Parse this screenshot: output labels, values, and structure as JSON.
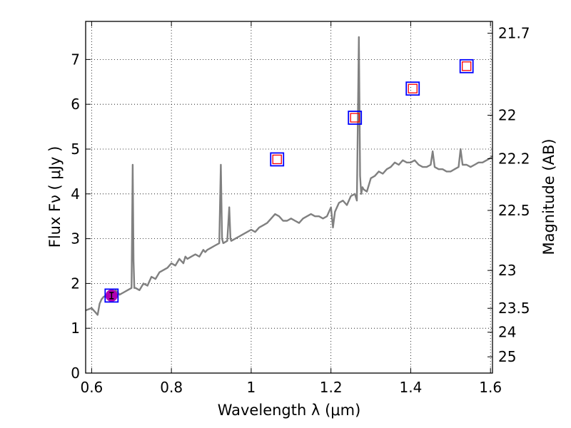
{
  "chart_data": {
    "type": "line",
    "xlabel": "Wavelength  λ (μm)",
    "ylabel": "Flux  Fν  ( μJy )",
    "ylabel_right": "Magnitude (AB)",
    "xlim": [
      0.585,
      1.605
    ],
    "ylim": [
      0,
      7.85
    ],
    "grid": true,
    "x_ticks": [
      0.6,
      0.8,
      1.0,
      1.2,
      1.4,
      1.6
    ],
    "x_tick_labels": [
      "0.6",
      "0.8",
      "1",
      "1.2",
      "1.4",
      "1.6"
    ],
    "y_ticks": [
      0,
      1,
      2,
      3,
      4,
      5,
      6,
      7
    ],
    "y_tick_labels": [
      "0",
      "1",
      "2",
      "3",
      "4",
      "5",
      "6",
      "7"
    ],
    "right_ticks_mag": [
      21.7,
      22,
      22.2,
      22.5,
      23,
      23.5,
      24,
      25
    ],
    "right_tick_labels": [
      "21.7",
      "22",
      "22.2",
      "22.5",
      "23",
      "23.5",
      "24",
      "25"
    ],
    "series": [
      {
        "color": "#808080",
        "x": [
          0.585,
          0.6,
          0.61,
          0.615,
          0.62,
          0.625,
          0.63,
          0.64,
          0.65,
          0.66,
          0.665,
          0.67,
          0.68,
          0.69,
          0.7,
          0.703,
          0.705,
          0.707,
          0.71,
          0.72,
          0.73,
          0.74,
          0.75,
          0.76,
          0.77,
          0.78,
          0.79,
          0.8,
          0.81,
          0.82,
          0.83,
          0.835,
          0.84,
          0.85,
          0.86,
          0.87,
          0.88,
          0.885,
          0.89,
          0.9,
          0.91,
          0.92,
          0.924,
          0.927,
          0.93,
          0.94,
          0.945,
          0.948,
          0.95,
          0.96,
          0.97,
          0.98,
          0.99,
          1.0,
          1.01,
          1.02,
          1.03,
          1.04,
          1.05,
          1.06,
          1.07,
          1.08,
          1.09,
          1.1,
          1.11,
          1.12,
          1.13,
          1.14,
          1.15,
          1.16,
          1.17,
          1.18,
          1.19,
          1.2,
          1.205,
          1.21,
          1.22,
          1.23,
          1.24,
          1.25,
          1.26,
          1.265,
          1.27,
          1.273,
          1.276,
          1.279,
          1.282,
          1.29,
          1.3,
          1.31,
          1.32,
          1.33,
          1.34,
          1.35,
          1.36,
          1.37,
          1.38,
          1.39,
          1.4,
          1.41,
          1.42,
          1.43,
          1.44,
          1.45,
          1.455,
          1.46,
          1.47,
          1.48,
          1.49,
          1.5,
          1.51,
          1.52,
          1.525,
          1.53,
          1.54,
          1.55,
          1.56,
          1.57,
          1.58,
          1.59,
          1.6,
          1.605
        ],
        "y": [
          1.4,
          1.45,
          1.35,
          1.3,
          1.55,
          1.65,
          1.7,
          1.75,
          1.7,
          1.85,
          1.8,
          1.75,
          1.8,
          1.85,
          1.9,
          4.65,
          2.5,
          1.9,
          1.9,
          1.85,
          2.0,
          1.95,
          2.15,
          2.1,
          2.25,
          2.3,
          2.35,
          2.45,
          2.4,
          2.55,
          2.45,
          2.6,
          2.55,
          2.6,
          2.65,
          2.6,
          2.75,
          2.7,
          2.75,
          2.8,
          2.85,
          2.9,
          4.65,
          3.0,
          2.9,
          2.95,
          3.7,
          3.0,
          2.95,
          3.0,
          3.05,
          3.1,
          3.15,
          3.2,
          3.15,
          3.25,
          3.3,
          3.35,
          3.45,
          3.55,
          3.5,
          3.4,
          3.4,
          3.45,
          3.4,
          3.35,
          3.45,
          3.5,
          3.55,
          3.5,
          3.5,
          3.45,
          3.5,
          3.7,
          3.25,
          3.6,
          3.8,
          3.85,
          3.75,
          3.95,
          4.0,
          3.85,
          7.5,
          4.4,
          4.0,
          4.15,
          4.1,
          4.05,
          4.35,
          4.4,
          4.5,
          4.45,
          4.55,
          4.6,
          4.7,
          4.65,
          4.75,
          4.7,
          4.7,
          4.75,
          4.65,
          4.6,
          4.6,
          4.65,
          4.95,
          4.6,
          4.55,
          4.55,
          4.5,
          4.5,
          4.55,
          4.6,
          5.0,
          4.65,
          4.65,
          4.6,
          4.65,
          4.7,
          4.7,
          4.75,
          4.8,
          4.85
        ]
      }
    ],
    "photometry": {
      "x": [
        0.65,
        1.065,
        1.26,
        1.405,
        1.54
      ],
      "y": [
        1.73,
        4.77,
        5.7,
        6.35,
        6.85
      ],
      "yerr_first": 0.07,
      "detected_color": "#b000b0",
      "outer_square_color": "#0000ff",
      "inner_square_color": "#ff0000"
    }
  }
}
